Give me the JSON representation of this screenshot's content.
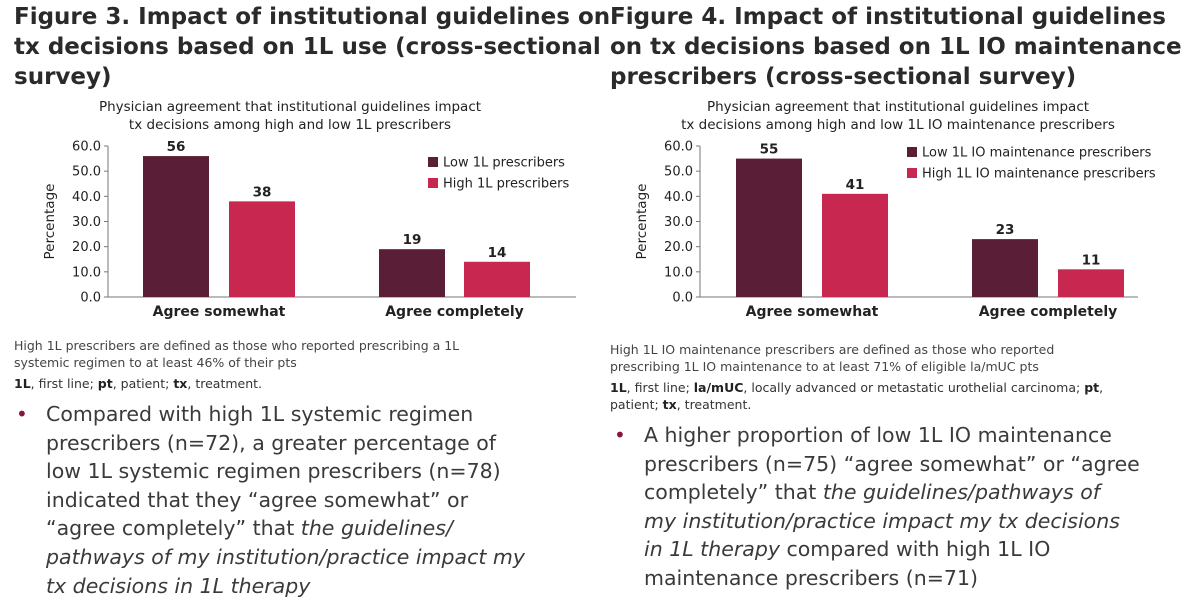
{
  "figures": [
    {
      "title_lines": [
        "Figure 3. Impact of institutional guidelines on",
        "tx decisions based on 1L use (cross-sectional",
        "survey)"
      ],
      "footnote_lines": [
        "High 1L prescribers are defined as those who reported prescribing a 1L",
        "systemic regimen to at least 46% of their pts"
      ],
      "abbreviations": [
        {
          "term": "1L",
          "def": ", first line; "
        },
        {
          "term": "pt",
          "def": ", patient; "
        },
        {
          "term": "tx",
          "def": ", treatment."
        }
      ],
      "bullet_dot": "•",
      "bullet_lines": [
        [
          {
            "t": "Compared with high 1L systemic regimen",
            "i": false
          }
        ],
        [
          {
            "t": "prescribers (n=72), a greater percentage of",
            "i": false
          }
        ],
        [
          {
            "t": "low 1L systemic regimen prescribers (n=78)",
            "i": false
          }
        ],
        [
          {
            "t": "indicated that they “agree somewhat” or",
            "i": false
          }
        ],
        [
          {
            "t": "“agree completely” that ",
            "i": false
          },
          {
            "t": "the guidelines/",
            "i": true
          }
        ],
        [
          {
            "t": "pathways of my institution/practice impact my",
            "i": true
          }
        ],
        [
          {
            "t": "tx decisions in 1L therapy",
            "i": true
          }
        ]
      ]
    },
    {
      "title_lines": [
        "Figure 4. Impact of institutional guidelines",
        "on tx decisions based on 1L IO maintenance",
        "prescribers (cross-sectional survey)"
      ],
      "footnote_lines": [
        "High 1L IO maintenance prescribers are defined as those who reported",
        "prescribing 1L IO maintenance to at least 71% of eligible la/mUC pts"
      ],
      "abbreviations_lines": [
        [
          {
            "term": "1L",
            "def": ", first line; "
          },
          {
            "term": "la/mUC",
            "def": ", locally advanced or metastatic urothelial carcinoma; "
          },
          {
            "term": "pt",
            "def": ","
          }
        ],
        [
          {
            "term": "",
            "def": "patient; "
          },
          {
            "term": "tx",
            "def": ", treatment."
          }
        ]
      ],
      "bullet_dot": "•",
      "bullet_lines": [
        [
          {
            "t": "A higher proportion of low 1L IO maintenance",
            "i": false
          }
        ],
        [
          {
            "t": "prescribers (n=75) “agree somewhat” or “agree",
            "i": false
          }
        ],
        [
          {
            "t": "completely” that ",
            "i": false
          },
          {
            "t": "the guidelines/pathways of",
            "i": true
          }
        ],
        [
          {
            "t": "my institution/practice impact my tx decisions",
            "i": true
          }
        ],
        [
          {
            "t": "in 1L therapy",
            "i": true
          },
          {
            "t": " compared with high 1L IO",
            "i": false
          }
        ],
        [
          {
            "t": "maintenance prescribers (n=71)",
            "i": false
          }
        ]
      ]
    }
  ],
  "chart_data": [
    {
      "type": "bar",
      "title_lines": [
        "Physician agreement that institutional guidelines impact",
        "tx decisions among high and low 1L prescribers"
      ],
      "ylabel": "Percentage",
      "xlabel": "",
      "categories": [
        "Agree somewhat",
        "Agree completely"
      ],
      "ylim": [
        0,
        60
      ],
      "yticks": [
        "0.0",
        "10.0",
        "20.0",
        "30.0",
        "40.0",
        "50.0",
        "60.0"
      ],
      "legend_position": "top-right",
      "grid": false,
      "series": [
        {
          "name": "Low 1L prescribers",
          "values": [
            56,
            19
          ],
          "labels": [
            "56",
            "19"
          ],
          "color": "#5a1f36"
        },
        {
          "name": "High 1L prescribers",
          "values": [
            38,
            14
          ],
          "labels": [
            "38",
            "14"
          ],
          "color": "#c8284f"
        }
      ]
    },
    {
      "type": "bar",
      "title_lines": [
        "Physician agreement that institutional guidelines impact",
        "tx decisions among high and low 1L IO maintenance  prescribers"
      ],
      "ylabel": "Percentage",
      "xlabel": "",
      "categories": [
        "Agree somewhat",
        "Agree completely"
      ],
      "ylim": [
        0,
        60
      ],
      "yticks": [
        "0.0",
        "10.0",
        "20.0",
        "30.0",
        "40.0",
        "50.0",
        "60.0"
      ],
      "legend_position": "top-right",
      "grid": false,
      "series": [
        {
          "name": "Low 1L IO maintenance prescribers",
          "values": [
            55,
            23
          ],
          "labels": [
            "55",
            "23"
          ],
          "color": "#5a1f36"
        },
        {
          "name": "High 1L IO maintenance prescribers",
          "values": [
            41,
            11
          ],
          "labels": [
            "41",
            "11"
          ],
          "color": "#c8284f"
        }
      ]
    }
  ]
}
